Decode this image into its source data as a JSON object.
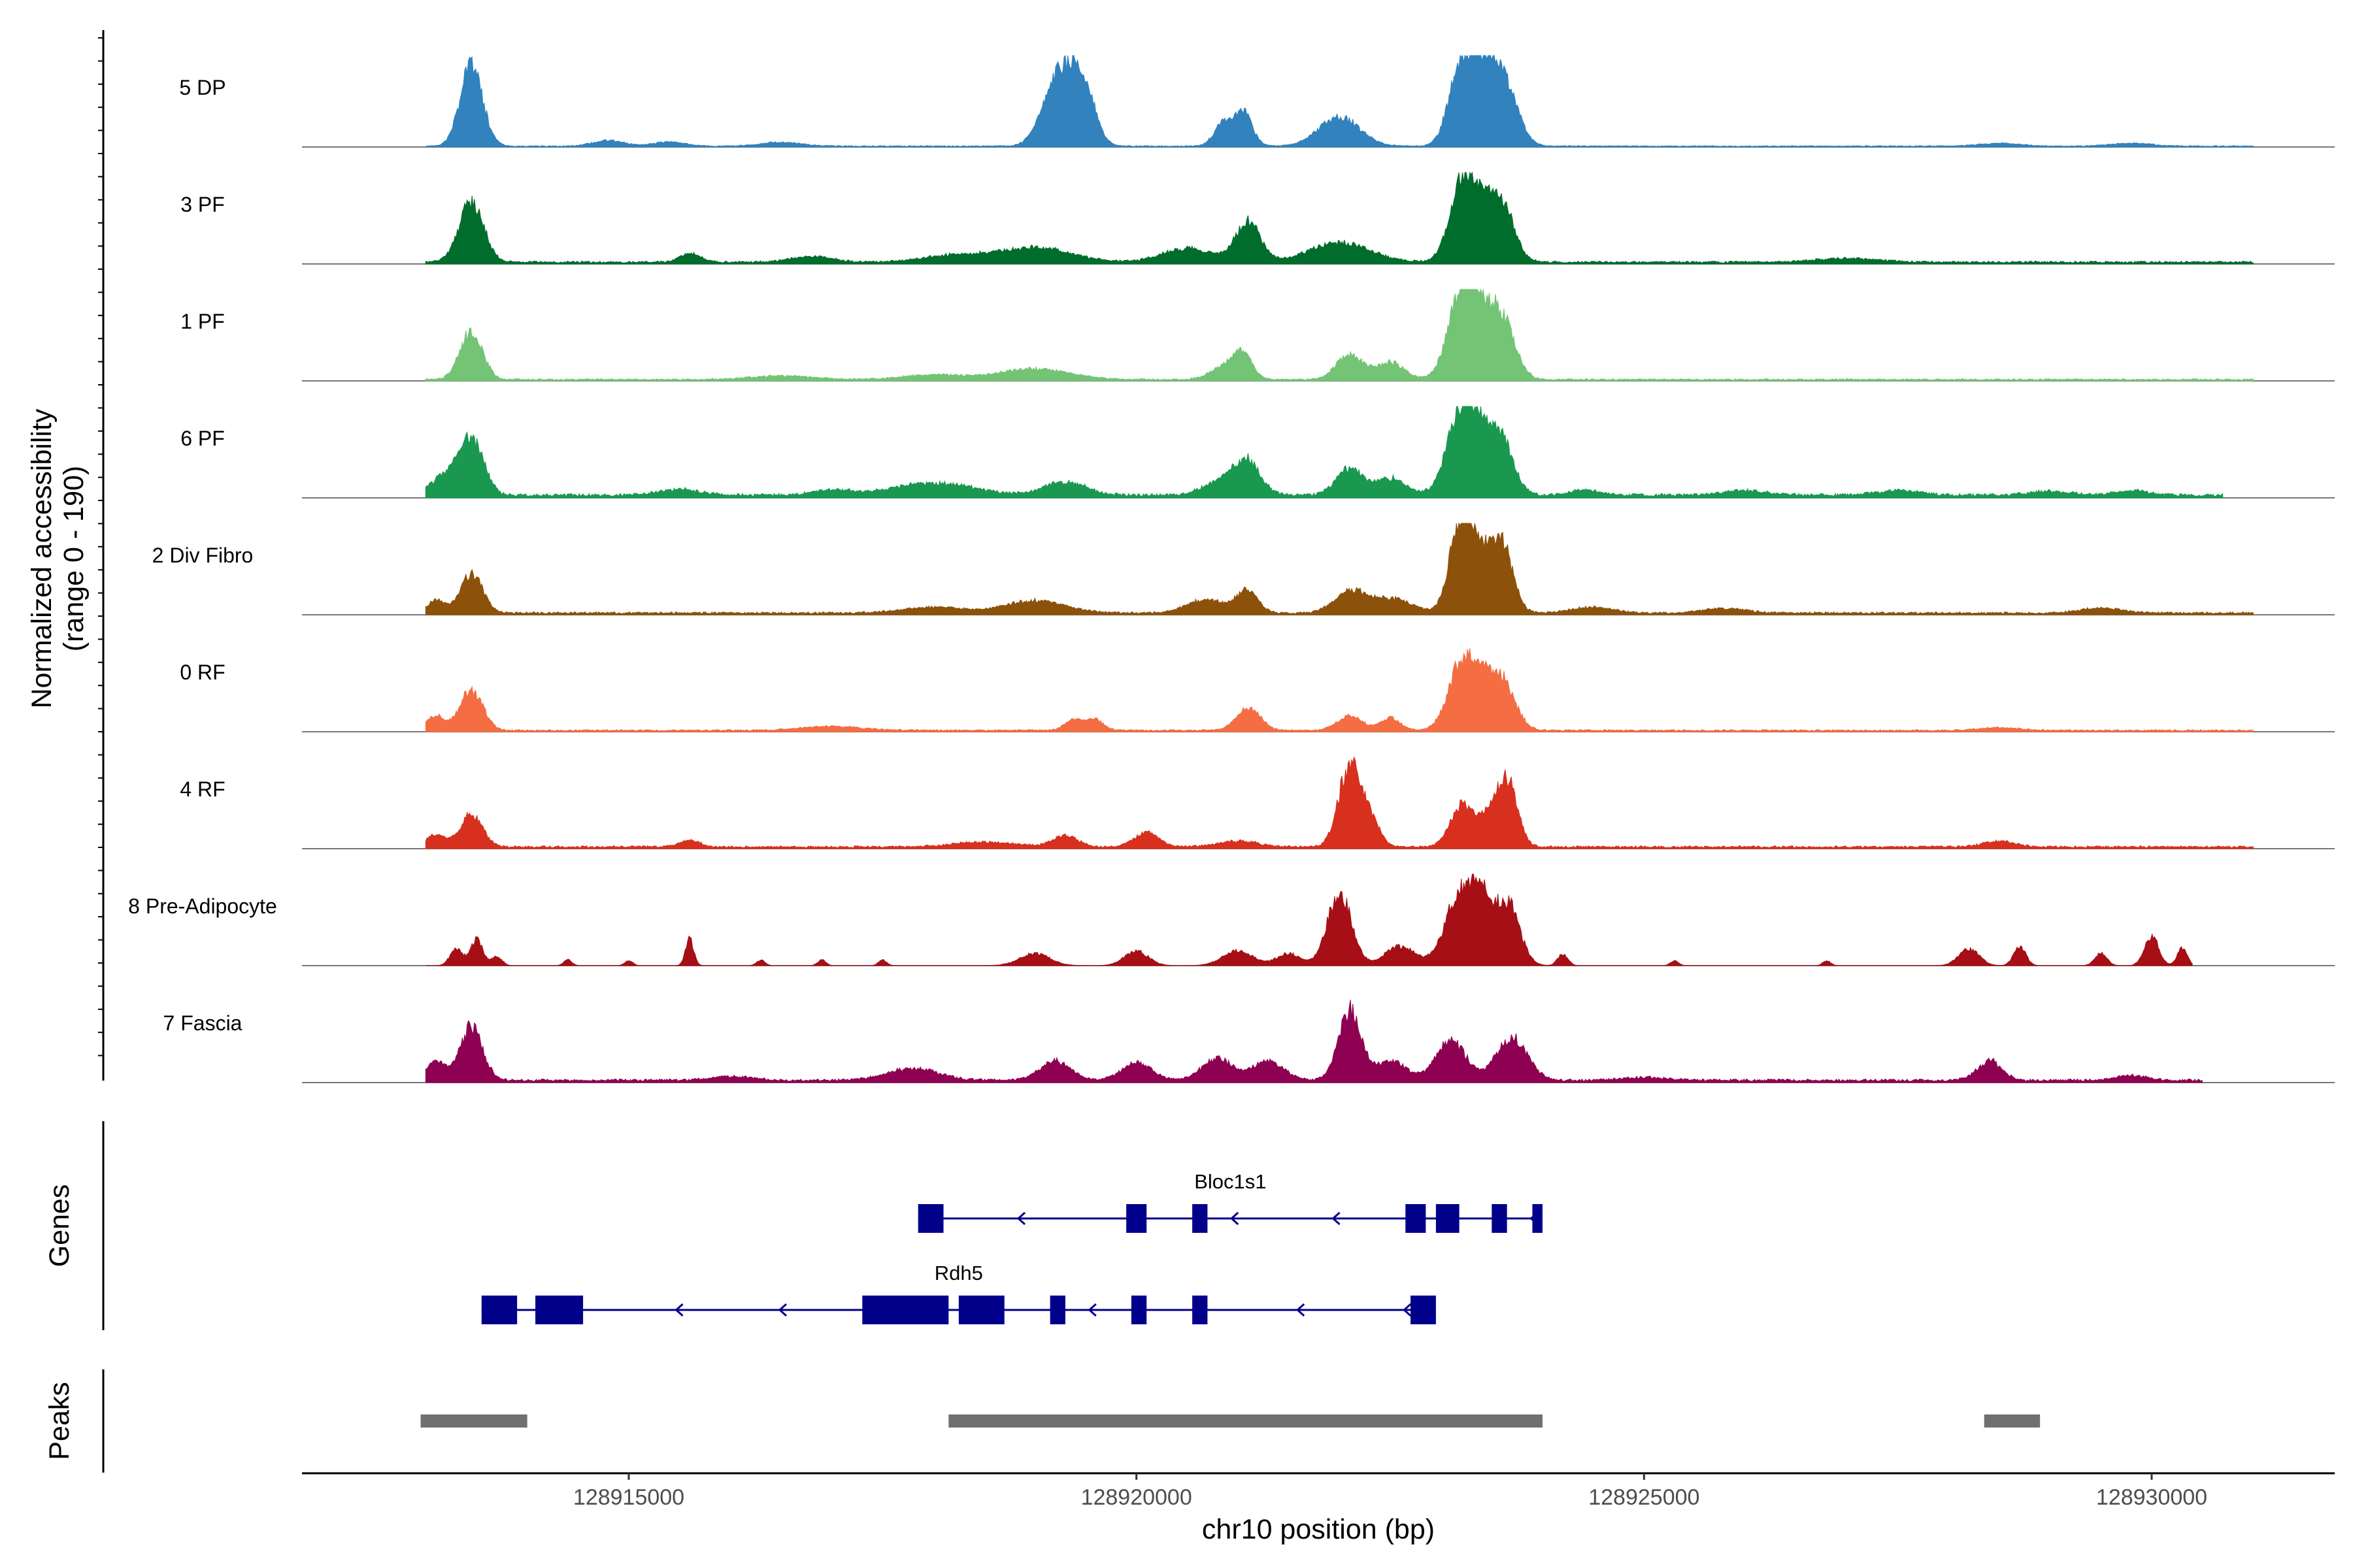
{
  "chart_data": {
    "type": "area",
    "title": "",
    "xlabel": "chr10 position (bp)",
    "ylabel": "Normalized accessibility\n(range 0 - 190)",
    "ylabel_lines": [
      "Normalized accessibility",
      "(range 0 - 190)"
    ],
    "y_range": [
      0,
      190
    ],
    "xlim": [
      128911000,
      128931000
    ],
    "x_ticks": [
      128915000,
      128920000,
      128925000,
      128930000
    ],
    "x_tick_labels": [
      "128915000",
      "128920000",
      "128925000",
      "128930000"
    ],
    "tracks": [
      {
        "name": "5 DP",
        "color": "#3182bd",
        "span": [
          128913000,
          128931000
        ],
        "baseline": 2,
        "peaks": [
          [
            128913450,
            165,
            110
          ],
          [
            128919300,
            150,
            150
          ],
          [
            128919500,
            80,
            110
          ],
          [
            128919100,
            35,
            120
          ],
          [
            128920850,
            45,
            90
          ],
          [
            128921050,
            70,
            90
          ],
          [
            128922000,
            60,
            200
          ],
          [
            128923200,
            165,
            120
          ],
          [
            128923600,
            140,
            140
          ],
          [
            128923400,
            110,
            110
          ],
          [
            128914800,
            12,
            150
          ],
          [
            128915400,
            9,
            150
          ],
          [
            128916500,
            8,
            200
          ],
          [
            128928500,
            6,
            200
          ],
          [
            128929800,
            6,
            200
          ]
        ]
      },
      {
        "name": "3 PF",
        "color": "#006d2c",
        "span": [
          128913000,
          128931000
        ],
        "baseline": 4,
        "peaks": [
          [
            128913450,
            125,
            120
          ],
          [
            128915600,
            18,
            100
          ],
          [
            128919000,
            30,
            350
          ],
          [
            128920500,
            28,
            250
          ],
          [
            128921100,
            85,
            120
          ],
          [
            128922000,
            40,
            300
          ],
          [
            128923200,
            155,
            120
          ],
          [
            128923600,
            115,
            120
          ],
          [
            128923400,
            90,
            120
          ],
          [
            128918200,
            14,
            300
          ],
          [
            128916800,
            12,
            200
          ],
          [
            128927000,
            8,
            300
          ]
        ]
      },
      {
        "name": "1 PF",
        "color": "#74c476",
        "span": [
          128913000,
          128931000
        ],
        "baseline": 3,
        "peaks": [
          [
            128913450,
            100,
            110
          ],
          [
            128919000,
            22,
            350
          ],
          [
            128920900,
            30,
            150
          ],
          [
            128921050,
            40,
            90
          ],
          [
            128922100,
            50,
            130
          ],
          [
            128922500,
            35,
            140
          ],
          [
            128923200,
            175,
            130
          ],
          [
            128923600,
            120,
            130
          ],
          [
            128923400,
            90,
            120
          ],
          [
            128916500,
            8,
            300
          ],
          [
            128918000,
            10,
            300
          ]
        ]
      },
      {
        "name": "6 PF",
        "color": "#1a9850",
        "span": [
          128913000,
          128930700
        ],
        "baseline": 6,
        "peaks": [
          [
            128913450,
            110,
            120
          ],
          [
            128913200,
            40,
            150
          ],
          [
            128918000,
            25,
            400
          ],
          [
            128919300,
            28,
            200
          ],
          [
            128920900,
            35,
            200
          ],
          [
            128921100,
            55,
            120
          ],
          [
            128922100,
            55,
            130
          ],
          [
            128922500,
            35,
            150
          ],
          [
            128923200,
            170,
            140
          ],
          [
            128923600,
            105,
            120
          ],
          [
            128923400,
            80,
            120
          ],
          [
            128915500,
            12,
            200
          ],
          [
            128917000,
            10,
            200
          ],
          [
            128924400,
            10,
            150
          ],
          [
            128926000,
            10,
            200
          ],
          [
            128927500,
            10,
            200
          ],
          [
            128929000,
            8,
            200
          ],
          [
            128929800,
            10,
            150
          ]
        ]
      },
      {
        "name": "2 Div Fibro",
        "color": "#8c510a",
        "span": [
          128913000,
          128931000
        ],
        "baseline": 4,
        "peaks": [
          [
            128913450,
            80,
            110
          ],
          [
            128913100,
            25,
            90
          ],
          [
            128919000,
            25,
            300
          ],
          [
            128920700,
            28,
            200
          ],
          [
            128921100,
            45,
            100
          ],
          [
            128922100,
            45,
            150
          ],
          [
            128922500,
            30,
            200
          ],
          [
            128923200,
            190,
            110
          ],
          [
            128923600,
            130,
            110
          ],
          [
            128923400,
            90,
            120
          ],
          [
            128918000,
            12,
            300
          ],
          [
            128924500,
            12,
            200
          ],
          [
            128925800,
            10,
            200
          ],
          [
            128929500,
            10,
            200
          ]
        ]
      },
      {
        "name": "0 RF",
        "color": "#f46d43",
        "span": [
          128913000,
          128931000
        ],
        "baseline": 3,
        "peaks": [
          [
            128913450,
            85,
            110
          ],
          [
            128913100,
            30,
            90
          ],
          [
            128919400,
            22,
            100
          ],
          [
            128919600,
            20,
            80
          ],
          [
            128921100,
            45,
            120
          ],
          [
            128922100,
            30,
            120
          ],
          [
            128922500,
            25,
            100
          ],
          [
            128923200,
            130,
            130
          ],
          [
            128923600,
            95,
            130
          ],
          [
            128923400,
            70,
            120
          ],
          [
            128917000,
            8,
            300
          ],
          [
            128928500,
            6,
            200
          ]
        ]
      },
      {
        "name": "4 RF",
        "color": "#d7301f",
        "span": [
          128913000,
          128931000
        ],
        "baseline": 4,
        "peaks": [
          [
            128913450,
            65,
            110
          ],
          [
            128913100,
            25,
            100
          ],
          [
            128915600,
            14,
            100
          ],
          [
            128919300,
            24,
            120
          ],
          [
            128920100,
            30,
            120
          ],
          [
            128922100,
            165,
            110
          ],
          [
            128922300,
            50,
            100
          ],
          [
            128923200,
            85,
            110
          ],
          [
            128923650,
            135,
            100
          ],
          [
            128923450,
            55,
            100
          ],
          [
            128918500,
            10,
            300
          ],
          [
            128921000,
            12,
            200
          ],
          [
            128928500,
            12,
            150
          ]
        ]
      },
      {
        "name": "8 Pre-Adipocyte",
        "color": "#a50f15",
        "span": [
          128913000,
          128930400
        ],
        "baseline": 0,
        "peaks": [
          [
            128913300,
            35,
            60
          ],
          [
            128913500,
            55,
            60
          ],
          [
            128913700,
            20,
            50
          ],
          [
            128914400,
            12,
            40
          ],
          [
            128915000,
            10,
            40
          ],
          [
            128915600,
            55,
            40
          ],
          [
            128916300,
            12,
            40
          ],
          [
            128916900,
            12,
            40
          ],
          [
            128917500,
            12,
            40
          ],
          [
            128919000,
            25,
            150
          ],
          [
            128920000,
            30,
            120
          ],
          [
            128921000,
            30,
            150
          ],
          [
            128921500,
            25,
            120
          ],
          [
            128922000,
            150,
            120
          ],
          [
            128922600,
            40,
            150
          ],
          [
            128923200,
            155,
            150
          ],
          [
            128923650,
            130,
            120
          ],
          [
            128923400,
            90,
            100
          ],
          [
            128924200,
            25,
            50
          ],
          [
            128925300,
            10,
            40
          ],
          [
            128926800,
            10,
            40
          ],
          [
            128928200,
            35,
            100
          ],
          [
            128928700,
            40,
            60
          ],
          [
            128929500,
            25,
            60
          ],
          [
            128930000,
            60,
            70
          ],
          [
            128930300,
            35,
            50
          ]
        ]
      },
      {
        "name": "7 Fascia",
        "color": "#8e0152",
        "span": [
          128913000,
          128930500
        ],
        "baseline": 5,
        "peaks": [
          [
            128913450,
            110,
            110
          ],
          [
            128913100,
            40,
            90
          ],
          [
            128917800,
            25,
            250
          ],
          [
            128919200,
            40,
            150
          ],
          [
            128920000,
            35,
            150
          ],
          [
            128920800,
            45,
            150
          ],
          [
            128921300,
            40,
            150
          ],
          [
            128922100,
            145,
            110
          ],
          [
            128922500,
            40,
            150
          ],
          [
            128923100,
            80,
            150
          ],
          [
            128923700,
            90,
            150
          ],
          [
            128928400,
            40,
            120
          ],
          [
            128916000,
            8,
            200
          ],
          [
            128925000,
            6,
            200
          ],
          [
            128929800,
            10,
            150
          ]
        ]
      }
    ],
    "genes": [
      {
        "name": "Bloc1s1",
        "color": "#00008b",
        "start": 128917850,
        "end": 128924000,
        "strand": "-",
        "exons": [
          [
            128917850,
            128918100
          ],
          [
            128919900,
            128920100
          ],
          [
            128920550,
            128920700
          ],
          [
            128922650,
            128922850
          ],
          [
            128922950,
            128923180
          ],
          [
            128923500,
            128923650
          ],
          [
            128923900,
            128924000
          ]
        ],
        "arrows": [
          128918850,
          128920950,
          128921950,
          128923900
        ]
      },
      {
        "name": "Rdh5",
        "color": "#00008b",
        "start": 128913550,
        "end": 128922950,
        "strand": "-",
        "exons": [
          [
            128913550,
            128913900
          ],
          [
            128914080,
            128914550
          ],
          [
            128917300,
            128918150
          ],
          [
            128918250,
            128918700
          ],
          [
            128919150,
            128919300
          ],
          [
            128919950,
            128920100
          ],
          [
            128920550,
            128920700
          ],
          [
            128922700,
            128922950
          ]
        ],
        "arrows": [
          128915480,
          128916500,
          128919550,
          128921600,
          128922650
        ]
      }
    ],
    "peaks": [
      [
        128912950,
        128914000
      ],
      [
        128918150,
        128924000
      ],
      [
        128928350,
        128928900
      ]
    ],
    "peaks_color": "#707070",
    "panel_labels": {
      "genes": "Genes",
      "peaks": "Peaks"
    }
  }
}
